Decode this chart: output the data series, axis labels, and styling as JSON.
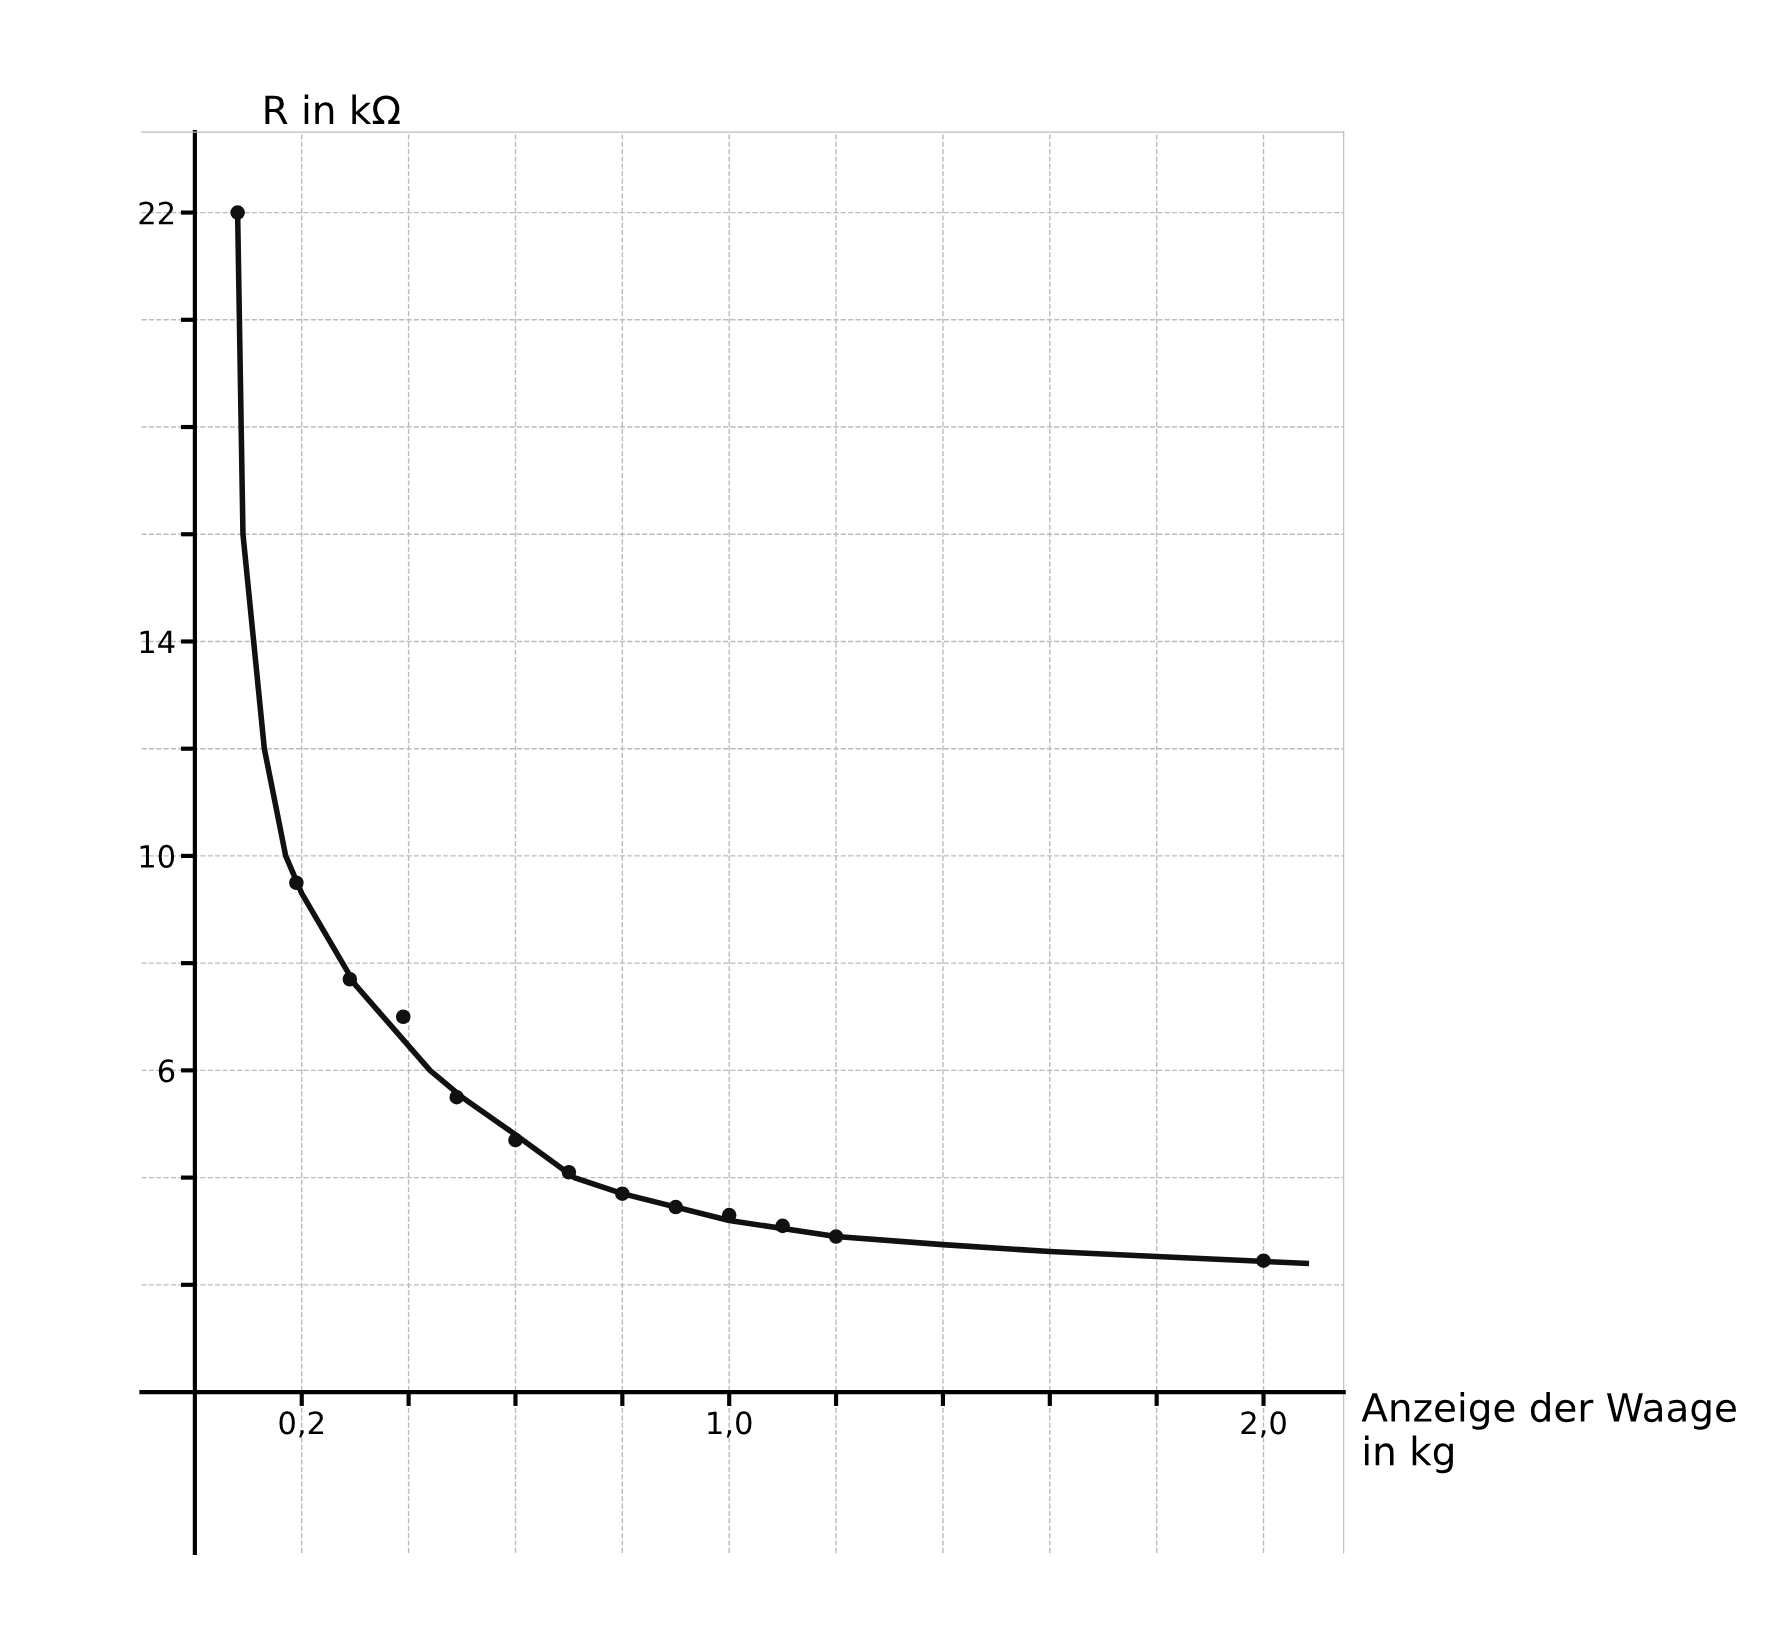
{
  "chart_data": {
    "type": "scatter",
    "xlabel": "Anzeige der Waage in kg",
    "ylabel": "R in kΩ",
    "xlim": [
      -0.1,
      2.15
    ],
    "ylim": [
      -3,
      23.5
    ],
    "xticks": [
      {
        "value": 0.2,
        "label": "0,2"
      },
      {
        "value": 0.4,
        "label": null
      },
      {
        "value": 0.6,
        "label": null
      },
      {
        "value": 0.8,
        "label": null
      },
      {
        "value": 1.0,
        "label": "1,0"
      },
      {
        "value": 1.2,
        "label": null
      },
      {
        "value": 1.4,
        "label": null
      },
      {
        "value": 1.6,
        "label": null
      },
      {
        "value": 1.8,
        "label": null
      },
      {
        "value": 2.0,
        "label": "2,0"
      }
    ],
    "yticks": [
      {
        "value": 2,
        "label": null
      },
      {
        "value": 4,
        "label": null
      },
      6,
      {
        "value": 8,
        "label": null
      },
      10,
      {
        "value": 12,
        "label": null
      },
      14,
      {
        "value": 16,
        "label": null
      },
      {
        "value": 18,
        "label": null
      },
      {
        "value": 20,
        "label": null
      },
      22
    ],
    "grid": true,
    "marker": "circle",
    "series": [
      {
        "color": "#111111",
        "x": [
          0.08,
          0.19,
          0.29,
          0.39,
          0.49,
          0.6,
          0.7,
          0.8,
          0.9,
          1.0,
          1.1,
          1.2,
          2.0
        ],
        "values": [
          22,
          9.5,
          7.7,
          7.0,
          5.5,
          4.7,
          4.1,
          3.7,
          3.45,
          3.3,
          3.1,
          2.9,
          2.45
        ]
      },
      {
        "type": "line",
        "color": "#111111",
        "marker": "none",
        "x": [
          0.08,
          0.09,
          0.11,
          0.13,
          0.15,
          0.17,
          0.2,
          0.3,
          0.44,
          0.5,
          0.6,
          0.71,
          0.8,
          1.0,
          1.2,
          1.4,
          1.6,
          1.8,
          2.08
        ],
        "values": [
          22,
          16,
          14,
          12,
          11,
          10,
          9.3,
          7.6,
          6,
          5.5,
          4.8,
          4,
          3.7,
          3.2,
          2.9,
          2.75,
          2.62,
          2.53,
          2.4
        ]
      }
    ]
  }
}
